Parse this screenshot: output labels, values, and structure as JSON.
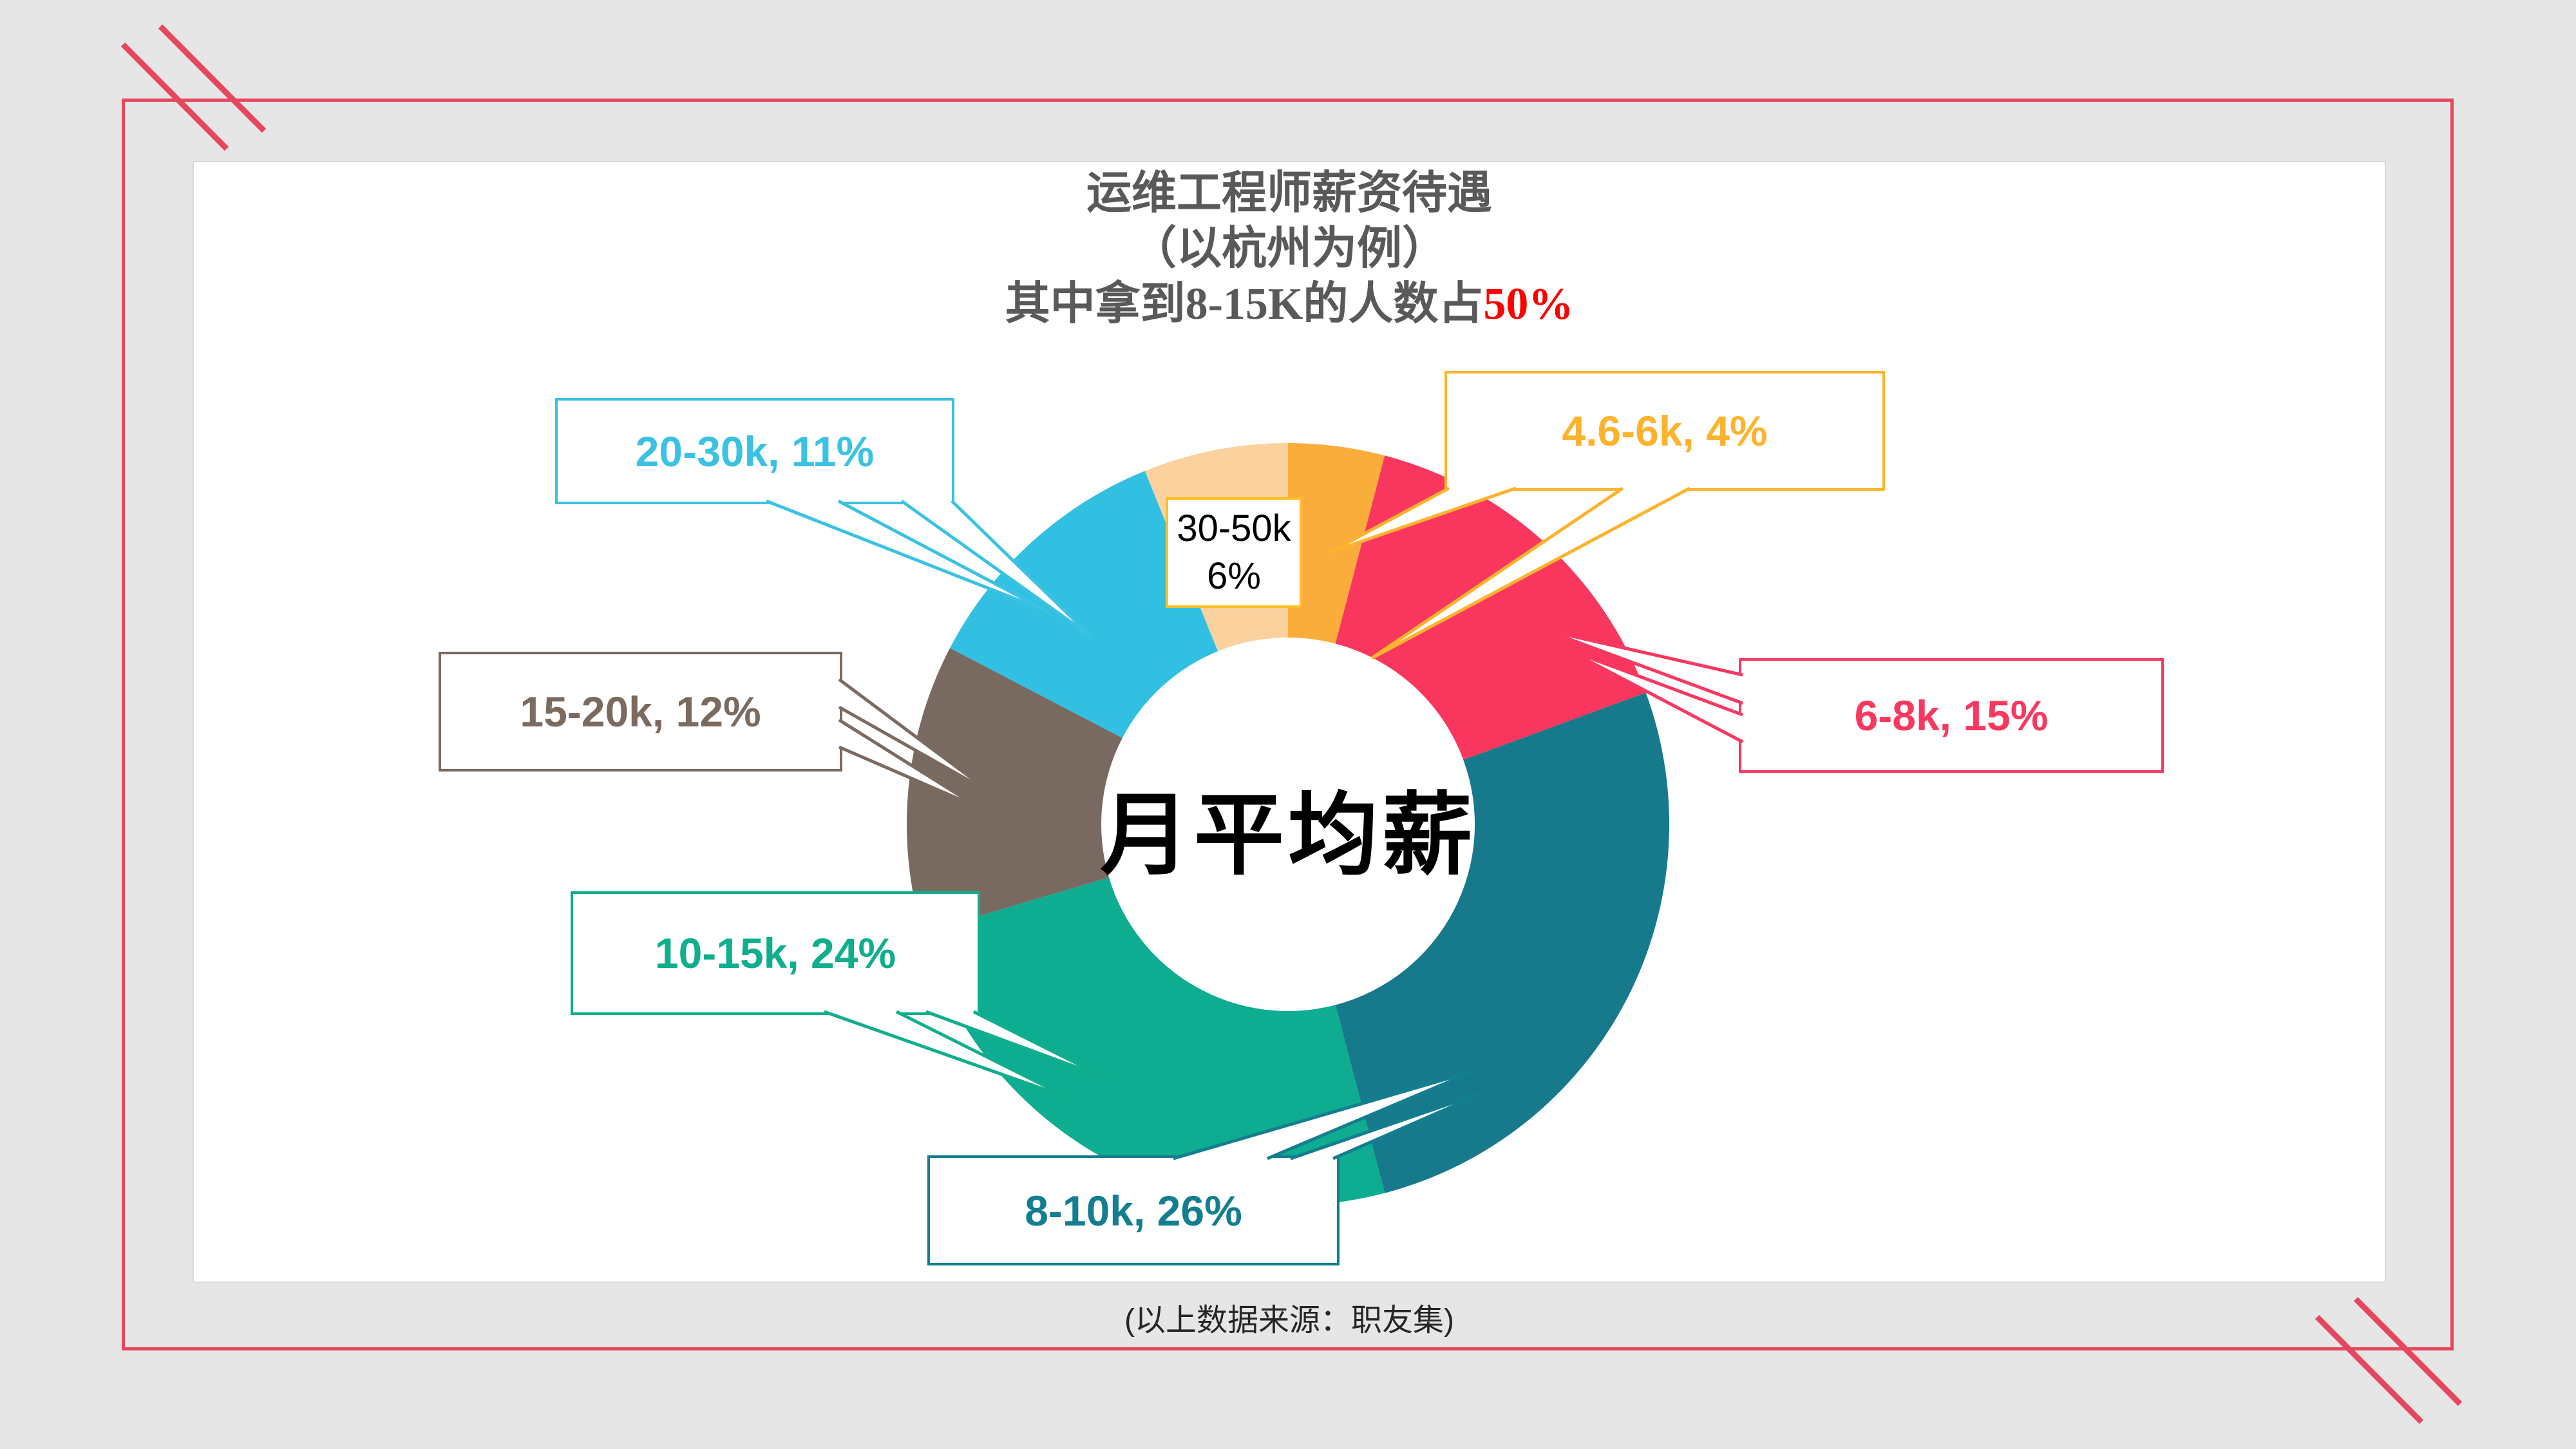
{
  "frame": {
    "border_color": "#E5485E",
    "background": "#E7E6E6",
    "panel_background": "#FFFFFF",
    "panel_border_color": "#D9D9D9"
  },
  "title": {
    "line1": "运维工程师薪资待遇",
    "line2": "（以杭州为例）",
    "line3_prefix": "其中拿到8-15K的人数占",
    "line3_highlight": "50%",
    "color": "#595959",
    "highlight_color": "#FF0000"
  },
  "center_label": "月平均薪",
  "footer": {
    "text": "(以上数据来源：职友集)"
  },
  "chart_data": {
    "type": "pie",
    "donut": true,
    "title": "运维工程师薪资待遇（以杭州为例）",
    "subtitle": "其中拿到8-15K的人数占50%",
    "center_text": "月平均薪",
    "start_angle_deg": 0,
    "direction": "clockwise",
    "inner_radius_ratio": 0.49,
    "legend_position": "callouts",
    "values_unit": "percent",
    "slices": [
      {
        "label": "4.6-6k",
        "value": 4,
        "display": "4.6-6k, 4%",
        "color": "#FBAD3C",
        "callout_color": "#FDB32E",
        "text_color": "#FDB32E"
      },
      {
        "label": "6-8k",
        "value": 15,
        "display": "6-8k, 15%",
        "color": "#F9375E",
        "callout_color": "#F8385F",
        "text_color": "#F8385F"
      },
      {
        "label": "8-10k",
        "value": 26,
        "display": "8-10k, 26%",
        "color": "#17798C",
        "callout_color": "#137E90",
        "text_color": "#137E90"
      },
      {
        "label": "10-15k",
        "value": 24,
        "display": "10-15k, 24%",
        "color": "#0EAC90",
        "callout_color": "#0FAE8C",
        "text_color": "#0FAE8C"
      },
      {
        "label": "15-20k",
        "value": 12,
        "display": "15-20k, 12%",
        "color": "#796A61",
        "callout_color": "#7A6A60",
        "text_color": "#7A6A60"
      },
      {
        "label": "20-30k",
        "value": 11,
        "display": "20-30k, 11%",
        "color": "#31C0E1",
        "callout_color": "#3BC2E2",
        "text_color": "#3BC2E2"
      },
      {
        "label": "30-50k",
        "value": 6,
        "display": "30-50k",
        "pct_display": "6%",
        "color": "#FBD29E",
        "callout_color": "#FFC028",
        "text_color": "#000000"
      }
    ]
  }
}
